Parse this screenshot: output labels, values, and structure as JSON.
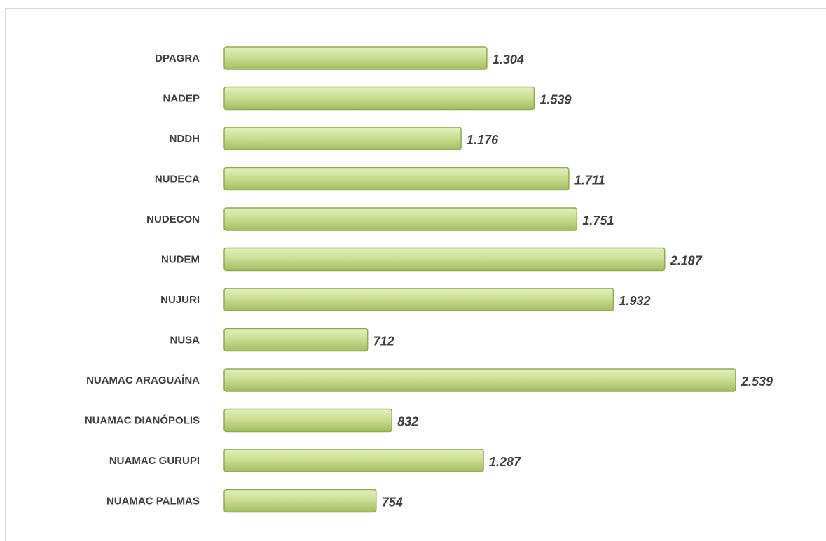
{
  "chart_data": {
    "type": "hbar",
    "categories": [
      "DPAGRA",
      "NADEP",
      "NDDH",
      "NUDECA",
      "NUDECON",
      "NUDEM",
      "NUJURI",
      "NUSA",
      "NUAMAC ARAGUAÍNA",
      "NUAMAC DIANÓPOLIS",
      "NUAMAC GURUPI",
      "NUAMAC PALMAS"
    ],
    "values": [
      1304,
      1539,
      1176,
      1711,
      1751,
      2187,
      1932,
      712,
      2539,
      832,
      1287,
      754
    ],
    "value_labels": [
      "1.304",
      "1.539",
      "1.176",
      "1.711",
      "1.751",
      "2.187",
      "1.932",
      "712",
      "2.539",
      "832",
      "1.287",
      "754"
    ],
    "color": "#c3d888",
    "xlim": [
      0,
      2800
    ]
  }
}
